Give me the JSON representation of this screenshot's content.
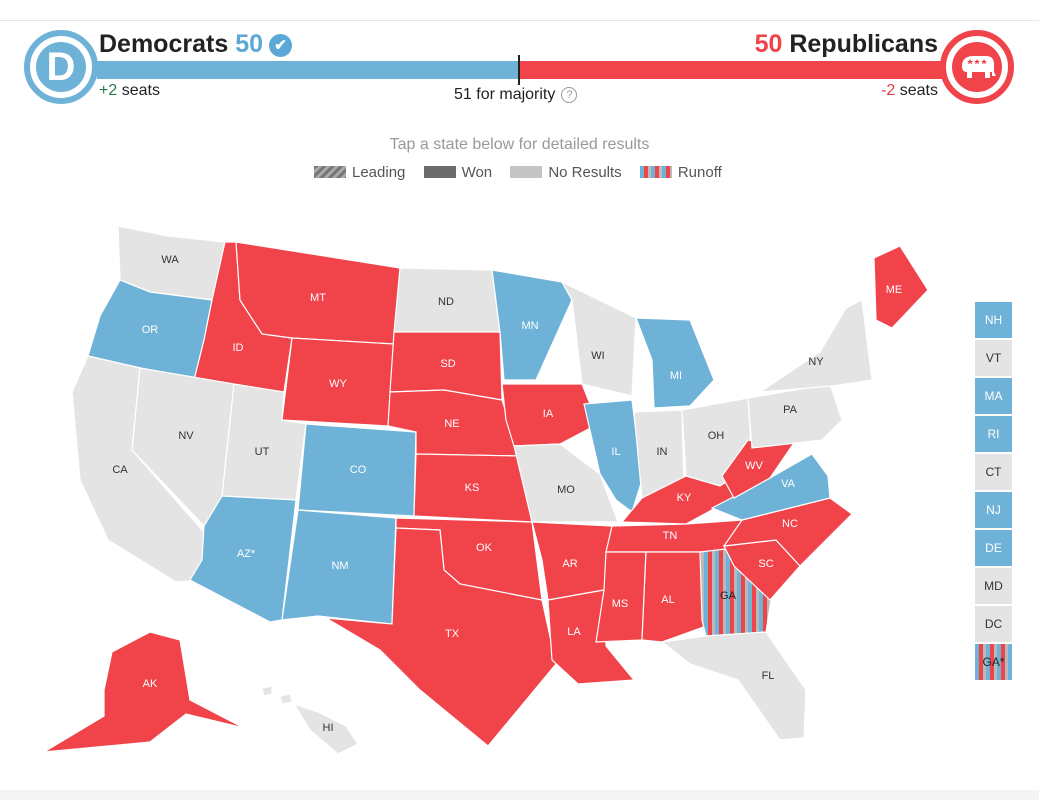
{
  "header": {
    "dem": {
      "name": "Democrats",
      "count": "50",
      "change_num": "+2",
      "change_label": "seats",
      "color": "#6fb2d8"
    },
    "rep": {
      "name": "Republicans",
      "count": "50",
      "change_num": "-2",
      "change_label": "seats",
      "color": "#f0434a"
    },
    "majority_label": "51 for majority"
  },
  "instruction": "Tap a state below for detailed results",
  "legend": [
    {
      "label": "Leading",
      "style": "leading"
    },
    {
      "label": "Won",
      "style": "won"
    },
    {
      "label": "No Results",
      "style": "none"
    },
    {
      "label": "Runoff",
      "style": "runoff"
    }
  ],
  "colors": {
    "dem": "#6fb2d8",
    "rep": "#f0434a",
    "none": "#e4e4e4"
  },
  "states": [
    {
      "abbr": "WA",
      "status": "none"
    },
    {
      "abbr": "OR",
      "status": "dem"
    },
    {
      "abbr": "CA",
      "status": "none"
    },
    {
      "abbr": "ID",
      "status": "rep"
    },
    {
      "abbr": "NV",
      "status": "none"
    },
    {
      "abbr": "UT",
      "status": "none"
    },
    {
      "abbr": "AZ*",
      "status": "dem"
    },
    {
      "abbr": "MT",
      "status": "rep"
    },
    {
      "abbr": "WY",
      "status": "rep"
    },
    {
      "abbr": "CO",
      "status": "dem"
    },
    {
      "abbr": "NM",
      "status": "dem"
    },
    {
      "abbr": "ND",
      "status": "none"
    },
    {
      "abbr": "SD",
      "status": "rep"
    },
    {
      "abbr": "NE",
      "status": "rep"
    },
    {
      "abbr": "KS",
      "status": "rep"
    },
    {
      "abbr": "OK",
      "status": "rep"
    },
    {
      "abbr": "TX",
      "status": "rep"
    },
    {
      "abbr": "MN",
      "status": "dem"
    },
    {
      "abbr": "IA",
      "status": "rep"
    },
    {
      "abbr": "MO",
      "status": "none"
    },
    {
      "abbr": "AR",
      "status": "rep"
    },
    {
      "abbr": "LA",
      "status": "rep"
    },
    {
      "abbr": "WI",
      "status": "none"
    },
    {
      "abbr": "IL",
      "status": "dem"
    },
    {
      "abbr": "MI",
      "status": "dem"
    },
    {
      "abbr": "IN",
      "status": "none"
    },
    {
      "abbr": "OH",
      "status": "none"
    },
    {
      "abbr": "KY",
      "status": "rep"
    },
    {
      "abbr": "TN",
      "status": "rep"
    },
    {
      "abbr": "MS",
      "status": "rep"
    },
    {
      "abbr": "AL",
      "status": "rep"
    },
    {
      "abbr": "GA",
      "status": "runoff"
    },
    {
      "abbr": "FL",
      "status": "none"
    },
    {
      "abbr": "SC",
      "status": "rep"
    },
    {
      "abbr": "NC",
      "status": "rep"
    },
    {
      "abbr": "VA",
      "status": "dem"
    },
    {
      "abbr": "WV",
      "status": "rep"
    },
    {
      "abbr": "PA",
      "status": "none"
    },
    {
      "abbr": "NY",
      "status": "none"
    },
    {
      "abbr": "ME",
      "status": "rep"
    },
    {
      "abbr": "AK",
      "status": "rep"
    },
    {
      "abbr": "HI",
      "status": "none"
    }
  ],
  "small_states": [
    {
      "abbr": "NH",
      "status": "dem"
    },
    {
      "abbr": "VT",
      "status": "none"
    },
    {
      "abbr": "MA",
      "status": "dem"
    },
    {
      "abbr": "RI",
      "status": "dem"
    },
    {
      "abbr": "CT",
      "status": "none"
    },
    {
      "abbr": "NJ",
      "status": "dem"
    },
    {
      "abbr": "DE",
      "status": "dem"
    },
    {
      "abbr": "MD",
      "status": "none"
    },
    {
      "abbr": "DC",
      "status": "none"
    },
    {
      "abbr": "GA*",
      "status": "runoff"
    }
  ]
}
